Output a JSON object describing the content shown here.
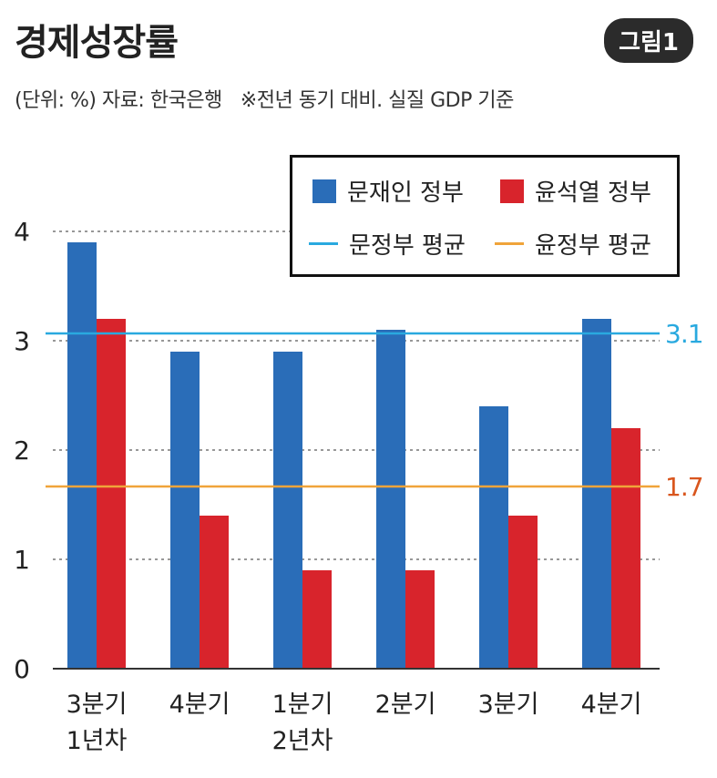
{
  "header": {
    "title": "경제성장률",
    "badge": "그림1",
    "unit_source": "(단위: %) 자료: 한국은행",
    "note": "※전년 동기 대비. 실질 GDP 기준"
  },
  "legend": {
    "moon_bar": "문재인 정부",
    "yoon_bar": "윤석열 정부",
    "moon_avg": "문정부 평균",
    "yoon_avg": "윤정부 평균"
  },
  "colors": {
    "moon_bar": "#2a6db8",
    "yoon_bar": "#d8242c",
    "moon_avg": "#29a9df",
    "yoon_avg": "#f0a43a",
    "yoon_avg_label": "#d9561e"
  },
  "chart_data": {
    "type": "bar",
    "categories": [
      [
        "3분기",
        "1년차"
      ],
      [
        "4분기"
      ],
      [
        "1분기",
        "2년차"
      ],
      [
        "2분기"
      ],
      [
        "3분기"
      ],
      [
        "4분기"
      ]
    ],
    "series": [
      {
        "name": "문재인 정부",
        "values": [
          3.9,
          2.9,
          2.9,
          3.1,
          2.4,
          3.2
        ]
      },
      {
        "name": "윤석열 정부",
        "values": [
          3.2,
          1.4,
          0.9,
          0.9,
          1.4,
          2.2
        ]
      }
    ],
    "averages": [
      {
        "name": "문정부 평균",
        "value": 3.1,
        "label": "3.1"
      },
      {
        "name": "윤정부 평균",
        "value": 1.7,
        "label": "1.7"
      }
    ],
    "yticks": [
      "0",
      "1",
      "2",
      "3",
      "4"
    ],
    "ylim": [
      0,
      4
    ],
    "grid": true,
    "legend_position": "top-right"
  }
}
